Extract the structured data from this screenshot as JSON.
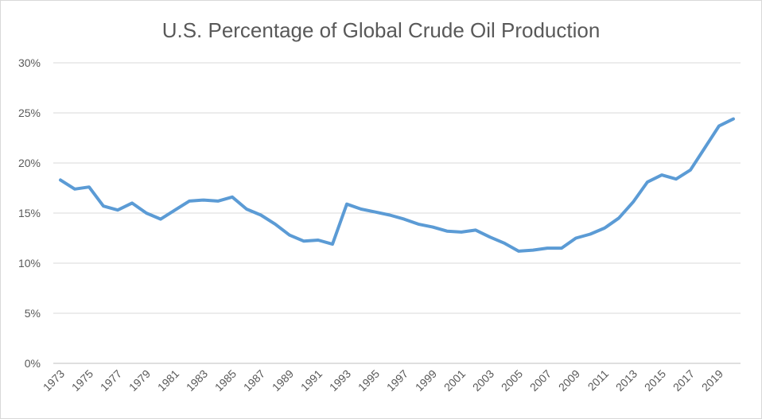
{
  "chart_data": {
    "type": "line",
    "title": "U.S. Percentage of Global Crude Oil Production",
    "xlabel": "",
    "ylabel": "",
    "ylim": [
      0,
      30
    ],
    "yticks": [
      "0%",
      "5%",
      "10%",
      "15%",
      "20%",
      "25%",
      "30%"
    ],
    "ytick_values": [
      0,
      5,
      10,
      15,
      20,
      25,
      30
    ],
    "xtick_labels": [
      "1973",
      "1975",
      "1977",
      "1979",
      "1981",
      "1983",
      "1985",
      "1987",
      "1989",
      "1991",
      "1993",
      "1995",
      "1997",
      "1999",
      "2001",
      "2003",
      "2005",
      "2007",
      "2009",
      "2011",
      "2013",
      "2015",
      "2017",
      "2019"
    ],
    "grid": true,
    "legend": "none",
    "color": "#5b9bd5",
    "x": [
      1973,
      1974,
      1975,
      1976,
      1977,
      1978,
      1979,
      1980,
      1981,
      1982,
      1983,
      1984,
      1985,
      1986,
      1987,
      1988,
      1989,
      1990,
      1991,
      1992,
      1993,
      1994,
      1995,
      1996,
      1997,
      1998,
      1999,
      2000,
      2001,
      2002,
      2003,
      2004,
      2005,
      2006,
      2007,
      2008,
      2009,
      2010,
      2011,
      2012,
      2013,
      2014,
      2015,
      2016,
      2017,
      2018,
      2019,
      2020
    ],
    "series": [
      {
        "values": [
          18.3,
          17.4,
          17.6,
          15.7,
          15.3,
          16.0,
          15.0,
          14.4,
          15.3,
          16.2,
          16.3,
          16.2,
          16.6,
          15.4,
          14.8,
          13.9,
          12.8,
          12.2,
          12.3,
          11.9,
          15.9,
          15.4,
          15.1,
          14.8,
          14.4,
          13.9,
          13.6,
          13.2,
          13.1,
          13.3,
          12.6,
          12.0,
          11.2,
          11.3,
          11.5,
          11.5,
          12.5,
          12.9,
          13.5,
          14.5,
          16.1,
          18.1,
          18.8,
          18.4,
          19.3,
          21.5,
          23.7,
          24.4
        ]
      }
    ]
  }
}
